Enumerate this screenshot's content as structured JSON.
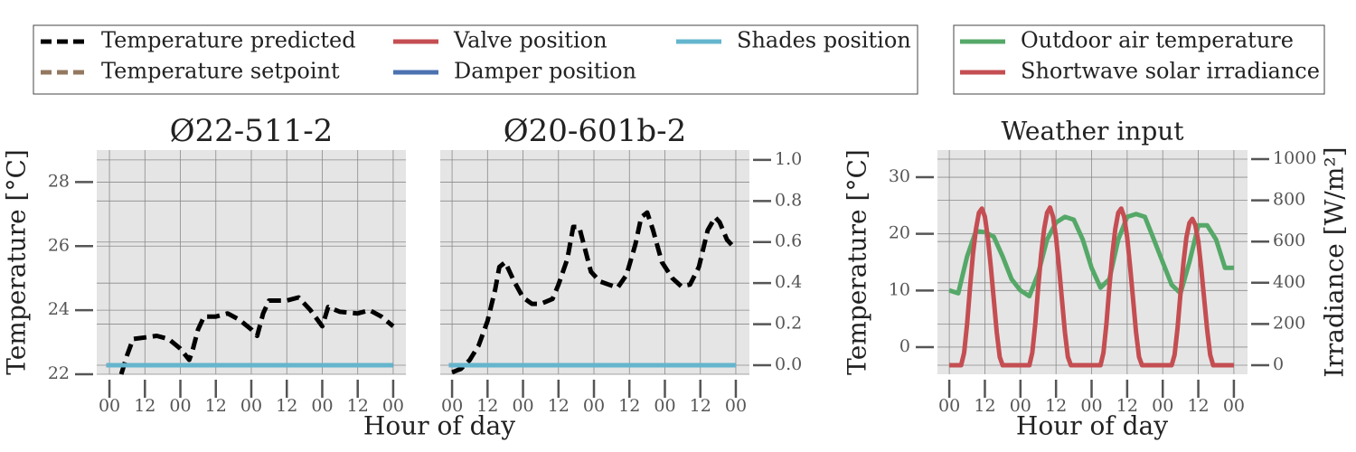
{
  "legends": [
    {
      "entries": [
        {
          "name": "Temperature predicted",
          "color": "#000000",
          "dash": "dashed"
        },
        {
          "name": "Temperature setpoint",
          "color": "#937860",
          "dash": "dashed"
        },
        {
          "name": "Valve position",
          "color": "#c44e52",
          "dash": "solid"
        },
        {
          "name": "Damper position",
          "color": "#4c72b0",
          "dash": "solid"
        },
        {
          "name": "Shades position",
          "color": "#64b5cd",
          "dash": "solid"
        }
      ]
    },
    {
      "entries": [
        {
          "name": "Outdoor air temperature",
          "color": "#55a868",
          "dash": "solid"
        },
        {
          "name": "Shortwave solar irradiance",
          "color": "#c44e52",
          "dash": "solid"
        }
      ]
    }
  ],
  "chart_data": [
    {
      "type": "line",
      "title": "Ø22-511-2",
      "ylabel": "Temperature [°C]",
      "xlabel": "Hour of day",
      "grid": true,
      "xlim": [
        -4.3,
        100.3
      ],
      "xticks": [
        {
          "value": 0,
          "label": "00"
        },
        {
          "value": 12,
          "label": "12"
        },
        {
          "value": 24,
          "label": "00"
        },
        {
          "value": 36,
          "label": "12"
        },
        {
          "value": 48,
          "label": "00"
        },
        {
          "value": 60,
          "label": "12"
        },
        {
          "value": 72,
          "label": "00"
        },
        {
          "value": 84,
          "label": "12"
        },
        {
          "value": 96,
          "label": "00"
        }
      ],
      "ylim": [
        22,
        29
      ],
      "yticks": [
        22,
        24,
        26,
        28
      ],
      "y2lim": [
        -0.044,
        1.048
      ],
      "y2ticks": [
        {
          "value": 0,
          "label": "0.0"
        },
        0.2,
        0.4,
        0.6,
        0.8,
        {
          "value": 1,
          "label": "1.0"
        }
      ],
      "y2tick_labels": false,
      "series": [
        {
          "name": "Temperature predicted",
          "color": "#000000",
          "dash": "dashed",
          "x": [
            4,
            6,
            8,
            12,
            16,
            20,
            24,
            27,
            28,
            30,
            32,
            36,
            40,
            44,
            48,
            50,
            52,
            54,
            60,
            64,
            68,
            72,
            74,
            78,
            84,
            88,
            92,
            96
          ],
          "values": [
            22.0,
            22.6,
            23.1,
            23.15,
            23.2,
            23.1,
            22.8,
            22.45,
            22.7,
            23.4,
            23.8,
            23.8,
            23.9,
            23.7,
            23.4,
            23.2,
            23.9,
            24.3,
            24.3,
            24.4,
            24.0,
            23.5,
            24.1,
            23.95,
            23.9,
            24.0,
            23.8,
            23.5
          ]
        },
        {
          "name": "Valve position",
          "color": "#c44e52",
          "axis": "y2",
          "x": [
            -1,
            96
          ],
          "values": [
            0,
            0
          ]
        },
        {
          "name": "Damper position",
          "color": "#4c72b0",
          "axis": "y2",
          "x": [
            -1,
            96
          ],
          "values": [
            0,
            0
          ]
        },
        {
          "name": "Shades position",
          "color": "#64b5cd",
          "axis": "y2",
          "x": [
            -1,
            96
          ],
          "values": [
            0,
            0
          ]
        }
      ]
    },
    {
      "type": "line",
      "title": "Ø20-601b-2",
      "grid": true,
      "xlim": [
        -4,
        100.6
      ],
      "xticks": [
        {
          "value": 0,
          "label": "00"
        },
        {
          "value": 12,
          "label": "12"
        },
        {
          "value": 24,
          "label": "00"
        },
        {
          "value": 36,
          "label": "12"
        },
        {
          "value": 48,
          "label": "00"
        },
        {
          "value": 60,
          "label": "12"
        },
        {
          "value": 72,
          "label": "00"
        },
        {
          "value": 84,
          "label": "12"
        },
        {
          "value": 96,
          "label": "00"
        }
      ],
      "ylim": [
        22,
        29
      ],
      "yticks": [
        22,
        24,
        26,
        28
      ],
      "ytick_labels": false,
      "y2lim": [
        -0.044,
        1.048
      ],
      "y2ticks": [
        {
          "value": 0,
          "label": "0.0"
        },
        0.2,
        0.4,
        0.6,
        0.8,
        {
          "value": 1,
          "label": "1.0"
        }
      ],
      "series": [
        {
          "name": "Temperature predicted",
          "color": "#000000",
          "dash": "dashed",
          "x": [
            0,
            3,
            6,
            9,
            12,
            14.6,
            16,
            18,
            21,
            24,
            27,
            30,
            34,
            36,
            39,
            41,
            43,
            45,
            47,
            50,
            53,
            56,
            59,
            62,
            64,
            66,
            68,
            71,
            74.5,
            77.5,
            80.5,
            83.5,
            86.5,
            89,
            90.5,
            93,
            95
          ],
          "values": [
            22.06,
            22.17,
            22.45,
            22.9,
            23.66,
            24.65,
            25.35,
            25.5,
            24.9,
            24.4,
            24.2,
            24.2,
            24.35,
            24.8,
            25.6,
            26.6,
            26.6,
            25.9,
            25.2,
            24.9,
            24.8,
            24.7,
            25.1,
            26.05,
            26.9,
            27.05,
            26.5,
            25.5,
            25.0,
            24.75,
            24.8,
            25.35,
            26.5,
            26.9,
            26.75,
            26.2,
            26.0
          ]
        },
        {
          "name": "Valve position",
          "color": "#c44e52",
          "axis": "y2",
          "x": [
            -1,
            96
          ],
          "values": [
            0,
            0
          ]
        },
        {
          "name": "Damper position",
          "color": "#4c72b0",
          "axis": "y2",
          "x": [
            -1,
            96
          ],
          "values": [
            0,
            0
          ]
        },
        {
          "name": "Shades position",
          "color": "#64b5cd",
          "axis": "y2",
          "x": [
            -1,
            96
          ],
          "values": [
            0,
            0
          ]
        }
      ]
    },
    {
      "type": "line",
      "title": "Weather input",
      "ylabel": "Temperature [°C]",
      "y2label": "Irradiance [W/m²]",
      "xlabel": "Hour of day",
      "grid": true,
      "xlim": [
        -4,
        100.6
      ],
      "xticks": [
        {
          "value": 0,
          "label": "00"
        },
        {
          "value": 12,
          "label": "12"
        },
        {
          "value": 24,
          "label": "00"
        },
        {
          "value": 36,
          "label": "12"
        },
        {
          "value": 48,
          "label": "00"
        },
        {
          "value": 60,
          "label": "12"
        },
        {
          "value": 72,
          "label": "00"
        },
        {
          "value": 84,
          "label": "12"
        },
        {
          "value": 96,
          "label": "00"
        }
      ],
      "ylim": [
        -4.8,
        34.8
      ],
      "yticks": [
        0,
        10,
        20,
        30
      ],
      "y2lim": [
        -44,
        1044
      ],
      "y2ticks": [
        0,
        200,
        400,
        600,
        800,
        1000
      ],
      "series": [
        {
          "name": "Outdoor air temperature",
          "color": "#55a868",
          "x": [
            0,
            3,
            6,
            9,
            12,
            15,
            18,
            21,
            24,
            27,
            30,
            33,
            36,
            39,
            42,
            45,
            48,
            51,
            54,
            57,
            60,
            63,
            66,
            69,
            72,
            75,
            78,
            81,
            84,
            87,
            90,
            93,
            96
          ],
          "values": [
            10,
            9.5,
            16,
            20.5,
            20.3,
            19.5,
            16,
            12,
            10,
            9,
            13,
            19,
            22,
            23,
            22.5,
            19,
            14,
            10.5,
            12,
            19,
            23,
            23.5,
            23,
            19,
            15,
            11,
            9.5,
            15,
            21.5,
            21.5,
            19,
            14,
            14
          ]
        },
        {
          "name": "Shortwave solar irradiance",
          "color": "#c44e52",
          "axis": "y2",
          "x": [
            0,
            1,
            2,
            3,
            4,
            5,
            6,
            7,
            8,
            9,
            10,
            11,
            12,
            13,
            14,
            15,
            16,
            17,
            18,
            19,
            20,
            21,
            22,
            23,
            24,
            25,
            26,
            27,
            28,
            29,
            30,
            31,
            32,
            33,
            34,
            35,
            36,
            37,
            38,
            39,
            40,
            41,
            42,
            43,
            44,
            45,
            46,
            47,
            48,
            49,
            50,
            51,
            52,
            53,
            54,
            55,
            56,
            57,
            58,
            59,
            60,
            61,
            62,
            63,
            64,
            65,
            66,
            67,
            68,
            69,
            70,
            71,
            72,
            73,
            74,
            75,
            76,
            77,
            78,
            79,
            80,
            81,
            82,
            83,
            84,
            85,
            86,
            87,
            88,
            89,
            90,
            91,
            92,
            93,
            94,
            95,
            96
          ],
          "values": [
            0,
            0,
            0,
            0,
            0,
            60,
            200,
            380,
            540,
            660,
            740,
            760,
            720,
            620,
            480,
            320,
            160,
            40,
            0,
            0,
            0,
            0,
            0,
            0,
            0,
            0,
            0,
            0,
            60,
            200,
            380,
            540,
            660,
            740,
            765,
            720,
            620,
            480,
            320,
            160,
            40,
            0,
            0,
            0,
            0,
            0,
            0,
            0,
            0,
            0,
            0,
            0,
            60,
            200,
            380,
            540,
            660,
            740,
            760,
            720,
            620,
            480,
            320,
            160,
            40,
            0,
            0,
            0,
            0,
            0,
            0,
            0,
            0,
            0,
            0,
            0,
            50,
            180,
            350,
            500,
            620,
            690,
            710,
            680,
            600,
            470,
            320,
            170,
            50,
            0,
            0,
            0,
            0,
            0,
            0,
            0,
            0
          ]
        }
      ]
    }
  ]
}
